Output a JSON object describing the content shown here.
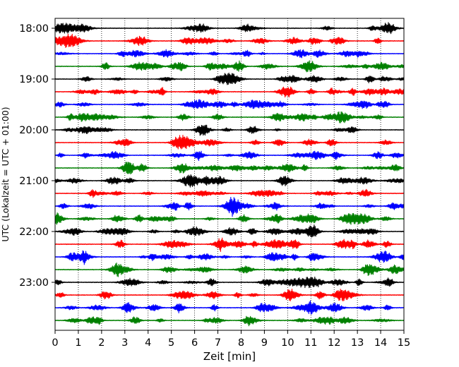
{
  "chart_data": {
    "type": "line",
    "xlabel": "Zeit  [min]",
    "ylabel": "UTC (Lokalzeit = UTC + 01:00)",
    "xlim": [
      0,
      15
    ],
    "x_ticks": [
      "0",
      "1",
      "2",
      "3",
      "4",
      "5",
      "6",
      "7",
      "8",
      "9",
      "10",
      "11",
      "12",
      "13",
      "14",
      "15"
    ],
    "y_ticks": [
      "18:00",
      "19:00",
      "20:00",
      "21:00",
      "22:00",
      "23:00"
    ],
    "grid": "vertical dotted lines at each minute",
    "trace_start_times": [
      "18:00",
      "18:15",
      "18:30",
      "18:45",
      "19:00",
      "19:15",
      "19:30",
      "19:45",
      "20:00",
      "20:15",
      "20:30",
      "20:45",
      "21:00",
      "21:15",
      "21:30",
      "21:45",
      "22:00",
      "22:15",
      "22:30",
      "22:45",
      "23:00",
      "23:15",
      "23:30",
      "23:45"
    ],
    "trace_duration_min": 15,
    "trace_color_cycle": [
      "#000000",
      "#ff0000",
      "#0000ff",
      "#008000"
    ]
  }
}
